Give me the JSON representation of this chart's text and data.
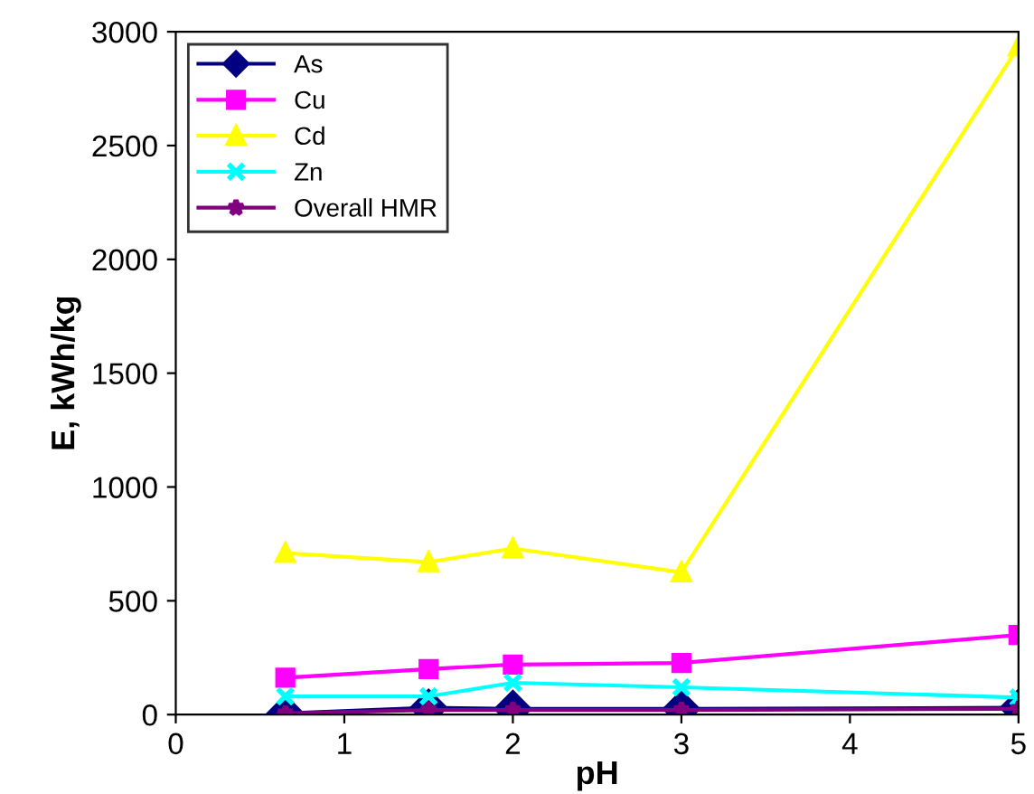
{
  "chart_data": {
    "type": "line",
    "xlabel": "pH",
    "ylabel": "E, kWh/kg",
    "xlim": [
      0,
      5
    ],
    "xticks": [
      0,
      1,
      2,
      3,
      4,
      5
    ],
    "ylim": [
      0,
      3000
    ],
    "yticks": [
      0,
      500,
      1000,
      1500,
      2000,
      2500,
      3000
    ],
    "grid": false,
    "legend": "top left",
    "line_style": "solid",
    "x": [
      0.65,
      1.5,
      2,
      3,
      5
    ],
    "series": [
      {
        "name": "As",
        "color": "#000080",
        "marker": "diamond",
        "values": [
          5,
          30,
          25,
          25,
          30
        ]
      },
      {
        "name": "Cu",
        "color": "#ff00ff",
        "marker": "square",
        "values": [
          162,
          200,
          220,
          227,
          350
        ]
      },
      {
        "name": "Cd",
        "color": "#ffff00",
        "marker": "triangle",
        "values": [
          710,
          670,
          730,
          625,
          2935
        ]
      },
      {
        "name": "Zn",
        "color": "#00ffff",
        "marker": "cross",
        "values": [
          80,
          80,
          140,
          120,
          75
        ]
      },
      {
        "name": "Overall HMR",
        "color": "#800080",
        "marker": "star",
        "values": [
          5,
          20,
          20,
          20,
          25
        ]
      }
    ]
  }
}
